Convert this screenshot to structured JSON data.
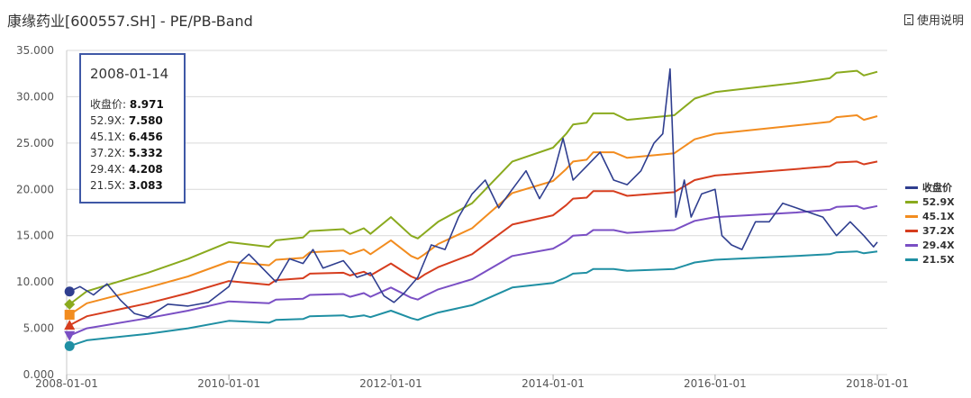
{
  "title": "康缘药业[600557.SH] - PE/PB-Band",
  "manual_label": "使用说明",
  "tooltip": {
    "date": "2008-01-14",
    "rows": [
      {
        "label": "收盘价",
        "value": "8.971"
      },
      {
        "label": "52.9X",
        "value": "7.580"
      },
      {
        "label": "45.1X",
        "value": "6.456"
      },
      {
        "label": "37.2X",
        "value": "5.332"
      },
      {
        "label": "29.4X",
        "value": "4.208"
      },
      {
        "label": "21.5X",
        "value": "3.083"
      }
    ]
  },
  "chart_data": {
    "type": "line",
    "title": "康缘药业[600557.SH] - PE/PB-Band",
    "xlabel": "",
    "ylabel": "",
    "ylim": [
      0,
      35
    ],
    "yticks": [
      "0.000",
      "5.000",
      "10.000",
      "15.000",
      "20.000",
      "25.000",
      "30.000",
      "35.000"
    ],
    "xticks": [
      "2008-01-01",
      "2010-01-01",
      "2012-01-01",
      "2014-01-01",
      "2016-01-01",
      "2018-01-01"
    ],
    "grid": true,
    "legend_position": "right",
    "series": [
      {
        "name": "收盘价",
        "color": "#2f3e8f",
        "points": [
          [
            "2008-01-14",
            8.97
          ],
          [
            "2008-03-01",
            9.5
          ],
          [
            "2008-05-01",
            8.6
          ],
          [
            "2008-07-01",
            9.8
          ],
          [
            "2008-09-01",
            8.0
          ],
          [
            "2008-11-01",
            6.6
          ],
          [
            "2009-01-01",
            6.2
          ],
          [
            "2009-04-01",
            7.6
          ],
          [
            "2009-07-01",
            7.4
          ],
          [
            "2009-10-01",
            7.8
          ],
          [
            "2010-01-01",
            9.5
          ],
          [
            "2010-02-15",
            12.0
          ],
          [
            "2010-04-01",
            13.0
          ],
          [
            "2010-06-01",
            11.5
          ],
          [
            "2010-08-01",
            10.0
          ],
          [
            "2010-10-01",
            12.5
          ],
          [
            "2010-12-01",
            12.0
          ],
          [
            "2011-01-15",
            13.5
          ],
          [
            "2011-03-01",
            11.5
          ],
          [
            "2011-06-01",
            12.3
          ],
          [
            "2011-08-01",
            10.5
          ],
          [
            "2011-10-01",
            11.0
          ],
          [
            "2011-12-01",
            8.5
          ],
          [
            "2012-01-15",
            7.8
          ],
          [
            "2012-03-01",
            8.8
          ],
          [
            "2012-05-01",
            10.5
          ],
          [
            "2012-07-01",
            14.0
          ],
          [
            "2012-09-01",
            13.5
          ],
          [
            "2012-11-01",
            17.0
          ],
          [
            "2013-01-01",
            19.5
          ],
          [
            "2013-03-01",
            21.0
          ],
          [
            "2013-05-01",
            18.0
          ],
          [
            "2013-07-01",
            20.0
          ],
          [
            "2013-09-01",
            22.0
          ],
          [
            "2013-11-01",
            19.0
          ],
          [
            "2014-01-01",
            21.5
          ],
          [
            "2014-02-15",
            25.5
          ],
          [
            "2014-04-01",
            21.0
          ],
          [
            "2014-06-01",
            22.5
          ],
          [
            "2014-08-01",
            24.0
          ],
          [
            "2014-10-01",
            21.0
          ],
          [
            "2014-12-01",
            20.5
          ],
          [
            "2015-02-01",
            22.0
          ],
          [
            "2015-04-01",
            25.0
          ],
          [
            "2015-05-10",
            26.0
          ],
          [
            "2015-06-12",
            33.0
          ],
          [
            "2015-07-08",
            17.0
          ],
          [
            "2015-08-15",
            21.0
          ],
          [
            "2015-09-15",
            17.0
          ],
          [
            "2015-11-01",
            19.5
          ],
          [
            "2016-01-01",
            20.0
          ],
          [
            "2016-02-01",
            15.0
          ],
          [
            "2016-03-15",
            14.0
          ],
          [
            "2016-05-01",
            13.5
          ],
          [
            "2016-07-01",
            16.5
          ],
          [
            "2016-09-01",
            16.5
          ],
          [
            "2016-11-01",
            18.5
          ],
          [
            "2017-01-01",
            18.0
          ],
          [
            "2017-03-01",
            17.5
          ],
          [
            "2017-05-01",
            17.0
          ],
          [
            "2017-07-01",
            15.0
          ],
          [
            "2017-09-01",
            16.5
          ],
          [
            "2017-11-01",
            15.0
          ],
          [
            "2017-12-15",
            13.8
          ],
          [
            "2018-01-01",
            14.3
          ]
        ]
      },
      {
        "name": "52.9X",
        "color": "#8aaa1e",
        "points": [
          [
            "2008-01-14",
            7.58
          ],
          [
            "2008-04-01",
            9.0
          ],
          [
            "2009-01-01",
            11.0
          ],
          [
            "2009-07-01",
            12.5
          ],
          [
            "2010-01-01",
            14.3
          ],
          [
            "2010-07-01",
            13.8
          ],
          [
            "2010-08-01",
            14.5
          ],
          [
            "2010-12-01",
            14.8
          ],
          [
            "2011-01-01",
            15.5
          ],
          [
            "2011-06-01",
            15.7
          ],
          [
            "2011-07-01",
            15.2
          ],
          [
            "2011-09-01",
            15.8
          ],
          [
            "2011-10-01",
            15.2
          ],
          [
            "2012-01-01",
            17.0
          ],
          [
            "2012-04-01",
            15.0
          ],
          [
            "2012-05-01",
            14.7
          ],
          [
            "2012-06-01",
            15.3
          ],
          [
            "2012-08-01",
            16.5
          ],
          [
            "2013-01-01",
            18.5
          ],
          [
            "2013-07-01",
            23.0
          ],
          [
            "2014-01-01",
            24.5
          ],
          [
            "2014-03-01",
            26.0
          ],
          [
            "2014-04-01",
            27.0
          ],
          [
            "2014-06-01",
            27.2
          ],
          [
            "2014-07-01",
            28.2
          ],
          [
            "2014-10-01",
            28.2
          ],
          [
            "2014-12-01",
            27.5
          ],
          [
            "2015-07-01",
            28.0
          ],
          [
            "2015-10-01",
            29.8
          ],
          [
            "2016-01-01",
            30.5
          ],
          [
            "2017-01-01",
            31.5
          ],
          [
            "2017-06-01",
            32.0
          ],
          [
            "2017-07-01",
            32.6
          ],
          [
            "2017-10-01",
            32.8
          ],
          [
            "2017-11-01",
            32.3
          ],
          [
            "2018-01-01",
            32.7
          ]
        ]
      },
      {
        "name": "45.1X",
        "color": "#f28c1f",
        "points": [
          [
            "2008-01-14",
            6.46
          ],
          [
            "2008-04-01",
            7.7
          ],
          [
            "2009-01-01",
            9.4
          ],
          [
            "2009-07-01",
            10.6
          ],
          [
            "2010-01-01",
            12.2
          ],
          [
            "2010-07-01",
            11.8
          ],
          [
            "2010-08-01",
            12.4
          ],
          [
            "2010-12-01",
            12.6
          ],
          [
            "2011-01-01",
            13.2
          ],
          [
            "2011-06-01",
            13.4
          ],
          [
            "2011-07-01",
            13.0
          ],
          [
            "2011-09-01",
            13.5
          ],
          [
            "2011-10-01",
            13.0
          ],
          [
            "2012-01-01",
            14.5
          ],
          [
            "2012-04-01",
            12.8
          ],
          [
            "2012-05-01",
            12.5
          ],
          [
            "2012-06-01",
            13.0
          ],
          [
            "2012-08-01",
            14.1
          ],
          [
            "2013-01-01",
            15.8
          ],
          [
            "2013-07-01",
            19.6
          ],
          [
            "2014-01-01",
            20.9
          ],
          [
            "2014-03-01",
            22.2
          ],
          [
            "2014-04-01",
            23.0
          ],
          [
            "2014-06-01",
            23.2
          ],
          [
            "2014-07-01",
            24.0
          ],
          [
            "2014-10-01",
            24.0
          ],
          [
            "2014-12-01",
            23.4
          ],
          [
            "2015-07-01",
            23.9
          ],
          [
            "2015-10-01",
            25.4
          ],
          [
            "2016-01-01",
            26.0
          ],
          [
            "2017-01-01",
            26.9
          ],
          [
            "2017-06-01",
            27.3
          ],
          [
            "2017-07-01",
            27.8
          ],
          [
            "2017-10-01",
            28.0
          ],
          [
            "2017-11-01",
            27.5
          ],
          [
            "2018-01-01",
            27.9
          ]
        ]
      },
      {
        "name": "37.2X",
        "color": "#d63d1e",
        "points": [
          [
            "2008-01-14",
            5.33
          ],
          [
            "2008-04-01",
            6.3
          ],
          [
            "2009-01-01",
            7.7
          ],
          [
            "2009-07-01",
            8.8
          ],
          [
            "2010-01-01",
            10.1
          ],
          [
            "2010-07-01",
            9.7
          ],
          [
            "2010-08-01",
            10.2
          ],
          [
            "2010-12-01",
            10.4
          ],
          [
            "2011-01-01",
            10.9
          ],
          [
            "2011-06-01",
            11.0
          ],
          [
            "2011-07-01",
            10.7
          ],
          [
            "2011-09-01",
            11.1
          ],
          [
            "2011-10-01",
            10.7
          ],
          [
            "2012-01-01",
            12.0
          ],
          [
            "2012-04-01",
            10.6
          ],
          [
            "2012-05-01",
            10.3
          ],
          [
            "2012-06-01",
            10.8
          ],
          [
            "2012-08-01",
            11.6
          ],
          [
            "2013-01-01",
            13.0
          ],
          [
            "2013-07-01",
            16.2
          ],
          [
            "2014-01-01",
            17.2
          ],
          [
            "2014-03-01",
            18.3
          ],
          [
            "2014-04-01",
            19.0
          ],
          [
            "2014-06-01",
            19.1
          ],
          [
            "2014-07-01",
            19.8
          ],
          [
            "2014-10-01",
            19.8
          ],
          [
            "2014-12-01",
            19.3
          ],
          [
            "2015-07-01",
            19.7
          ],
          [
            "2015-10-01",
            21.0
          ],
          [
            "2016-01-01",
            21.5
          ],
          [
            "2017-01-01",
            22.2
          ],
          [
            "2017-06-01",
            22.5
          ],
          [
            "2017-07-01",
            22.9
          ],
          [
            "2017-10-01",
            23.0
          ],
          [
            "2017-11-01",
            22.7
          ],
          [
            "2018-01-01",
            23.0
          ]
        ]
      },
      {
        "name": "29.4X",
        "color": "#7a4fc4",
        "points": [
          [
            "2008-01-14",
            4.21
          ],
          [
            "2008-04-01",
            5.0
          ],
          [
            "2009-01-01",
            6.1
          ],
          [
            "2009-07-01",
            6.9
          ],
          [
            "2010-01-01",
            7.9
          ],
          [
            "2010-07-01",
            7.7
          ],
          [
            "2010-08-01",
            8.1
          ],
          [
            "2010-12-01",
            8.2
          ],
          [
            "2011-01-01",
            8.6
          ],
          [
            "2011-06-01",
            8.7
          ],
          [
            "2011-07-01",
            8.4
          ],
          [
            "2011-09-01",
            8.8
          ],
          [
            "2011-10-01",
            8.4
          ],
          [
            "2012-01-01",
            9.4
          ],
          [
            "2012-04-01",
            8.3
          ],
          [
            "2012-05-01",
            8.1
          ],
          [
            "2012-06-01",
            8.5
          ],
          [
            "2012-08-01",
            9.2
          ],
          [
            "2013-01-01",
            10.3
          ],
          [
            "2013-07-01",
            12.8
          ],
          [
            "2014-01-01",
            13.6
          ],
          [
            "2014-03-01",
            14.4
          ],
          [
            "2014-04-01",
            15.0
          ],
          [
            "2014-06-01",
            15.1
          ],
          [
            "2014-07-01",
            15.6
          ],
          [
            "2014-10-01",
            15.6
          ],
          [
            "2014-12-01",
            15.3
          ],
          [
            "2015-07-01",
            15.6
          ],
          [
            "2015-10-01",
            16.6
          ],
          [
            "2016-01-01",
            17.0
          ],
          [
            "2017-01-01",
            17.5
          ],
          [
            "2017-06-01",
            17.8
          ],
          [
            "2017-07-01",
            18.1
          ],
          [
            "2017-10-01",
            18.2
          ],
          [
            "2017-11-01",
            17.9
          ],
          [
            "2018-01-01",
            18.2
          ]
        ]
      },
      {
        "name": "21.5X",
        "color": "#1f8fa3",
        "points": [
          [
            "2008-01-14",
            3.08
          ],
          [
            "2008-04-01",
            3.7
          ],
          [
            "2009-01-01",
            4.4
          ],
          [
            "2009-07-01",
            5.0
          ],
          [
            "2010-01-01",
            5.8
          ],
          [
            "2010-07-01",
            5.6
          ],
          [
            "2010-08-01",
            5.9
          ],
          [
            "2010-12-01",
            6.0
          ],
          [
            "2011-01-01",
            6.3
          ],
          [
            "2011-06-01",
            6.4
          ],
          [
            "2011-07-01",
            6.2
          ],
          [
            "2011-09-01",
            6.4
          ],
          [
            "2011-10-01",
            6.2
          ],
          [
            "2012-01-01",
            6.9
          ],
          [
            "2012-04-01",
            6.1
          ],
          [
            "2012-05-01",
            5.9
          ],
          [
            "2012-06-01",
            6.2
          ],
          [
            "2012-08-01",
            6.7
          ],
          [
            "2013-01-01",
            7.5
          ],
          [
            "2013-07-01",
            9.4
          ],
          [
            "2014-01-01",
            9.9
          ],
          [
            "2014-03-01",
            10.5
          ],
          [
            "2014-04-01",
            10.9
          ],
          [
            "2014-06-01",
            11.0
          ],
          [
            "2014-07-01",
            11.4
          ],
          [
            "2014-10-01",
            11.4
          ],
          [
            "2014-12-01",
            11.2
          ],
          [
            "2015-07-01",
            11.4
          ],
          [
            "2015-10-01",
            12.1
          ],
          [
            "2016-01-01",
            12.4
          ],
          [
            "2017-01-01",
            12.8
          ],
          [
            "2017-06-01",
            13.0
          ],
          [
            "2017-07-01",
            13.2
          ],
          [
            "2017-10-01",
            13.3
          ],
          [
            "2017-11-01",
            13.1
          ],
          [
            "2018-01-01",
            13.3
          ]
        ]
      }
    ]
  }
}
